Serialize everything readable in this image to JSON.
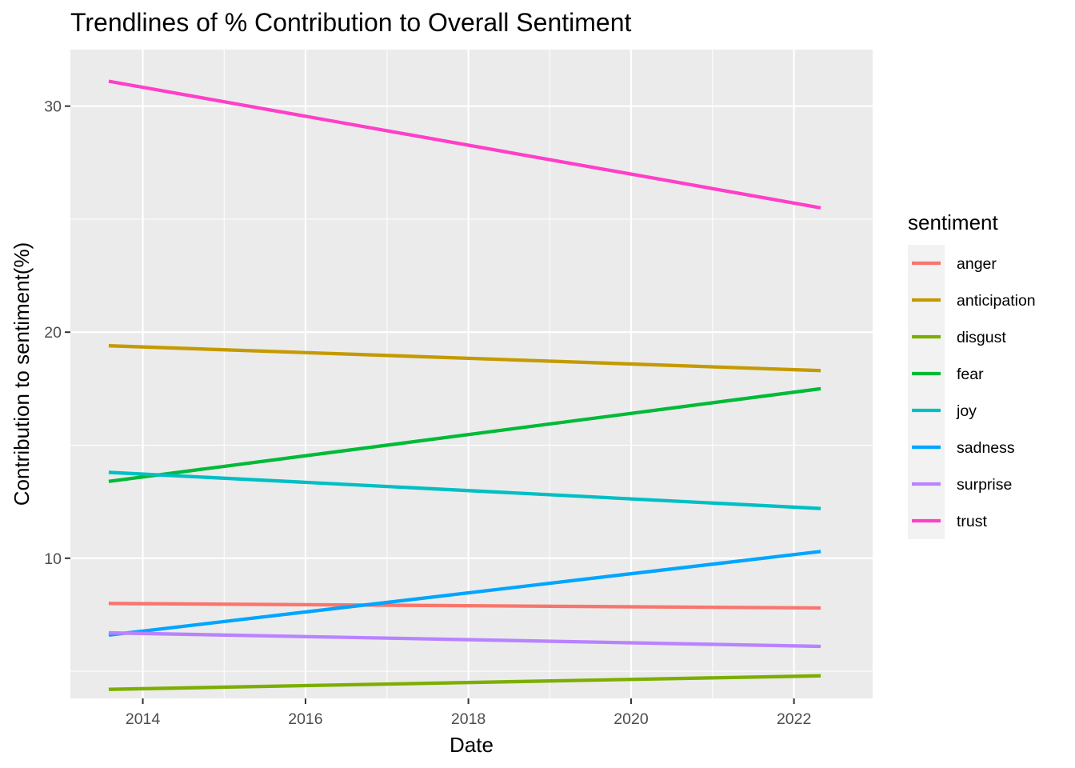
{
  "chart_data": {
    "type": "line",
    "title": "Trendlines of % Contribution to Overall Sentiment",
    "xlabel": "Date",
    "ylabel": "Contribution to sentiment(%)",
    "x_range": [
      "2013-08-01",
      "2022-05-01"
    ],
    "xlim": [
      "2013-02-10",
      "2022-12-20"
    ],
    "ylim": [
      3.8,
      32.5
    ],
    "x_ticks": [
      "2014",
      "2016",
      "2018",
      "2020",
      "2022"
    ],
    "y_ticks": [
      10,
      20,
      30
    ],
    "grid": true,
    "legend": {
      "title": "sentiment",
      "position": "right"
    },
    "series": [
      {
        "name": "anger",
        "color": "#F8766D",
        "values": [
          8.0,
          7.8
        ]
      },
      {
        "name": "anticipation",
        "color": "#C49A00",
        "values": [
          19.4,
          18.3
        ]
      },
      {
        "name": "disgust",
        "color": "#7CAE00",
        "values": [
          4.2,
          4.8
        ]
      },
      {
        "name": "fear",
        "color": "#00BA38",
        "values": [
          13.4,
          17.5
        ]
      },
      {
        "name": "joy",
        "color": "#00BFC4",
        "values": [
          13.8,
          12.2
        ]
      },
      {
        "name": "sadness",
        "color": "#00A5FF",
        "values": [
          6.6,
          10.3
        ]
      },
      {
        "name": "surprise",
        "color": "#B983FF",
        "values": [
          6.7,
          6.1
        ]
      },
      {
        "name": "trust",
        "color": "#FF3FC8",
        "values": [
          31.1,
          25.5
        ]
      }
    ]
  }
}
